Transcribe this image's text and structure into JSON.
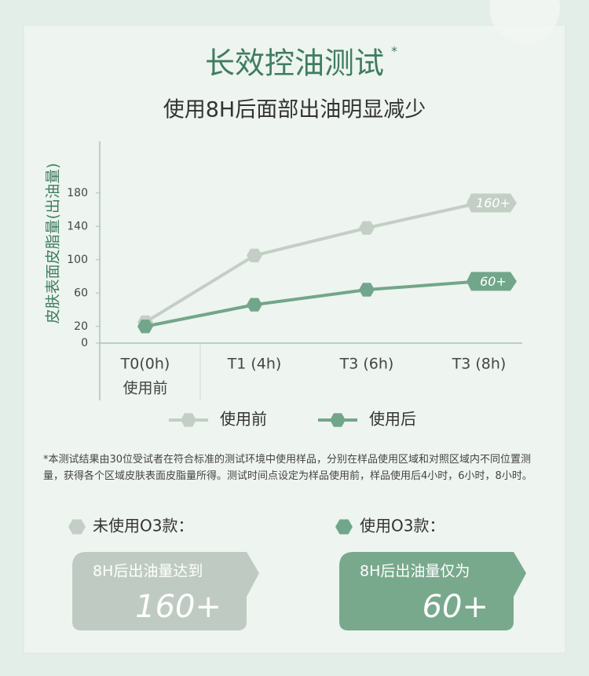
{
  "title": "长效控油测试",
  "title_mark": "*",
  "subtitle": "使用8H后面部出油明显减少",
  "chart_data": {
    "type": "line",
    "y_label": "皮肤表面皮脂量(出油量)",
    "categories": [
      "T0(0h)",
      "T1 (4h)",
      "T3 (6h)",
      "T3 (8h)"
    ],
    "x_sublabels": [
      "使用前",
      null,
      null,
      null
    ],
    "ylim": [
      0,
      240
    ],
    "yticks": [
      0,
      20,
      60,
      100,
      140,
      180
    ],
    "series": [
      {
        "name": "使用前",
        "color": "#c3cfc5",
        "values": [
          25,
          105,
          138,
          168
        ],
        "end_label": "160+"
      },
      {
        "name": "使用后",
        "color": "#72a68a",
        "values": [
          20,
          46,
          64,
          74
        ],
        "end_label": "60+"
      }
    ]
  },
  "footnote": "*本测试结果由30位受试者在符合标准的测试环境中使用样品，分别在样品使用区域和对照区域内不同位置测量，获得各个区域皮肤表面皮脂量所得。测试时间点设定为样品使用前，样品使用后4小时，6小时，8小时。",
  "cards": [
    {
      "heading": "未使用O3款：",
      "text": "8H后出油量达到",
      "value": "160+"
    },
    {
      "heading": "使用O3款：",
      "text": "8H后出油量仅为",
      "value": "60+"
    }
  ]
}
